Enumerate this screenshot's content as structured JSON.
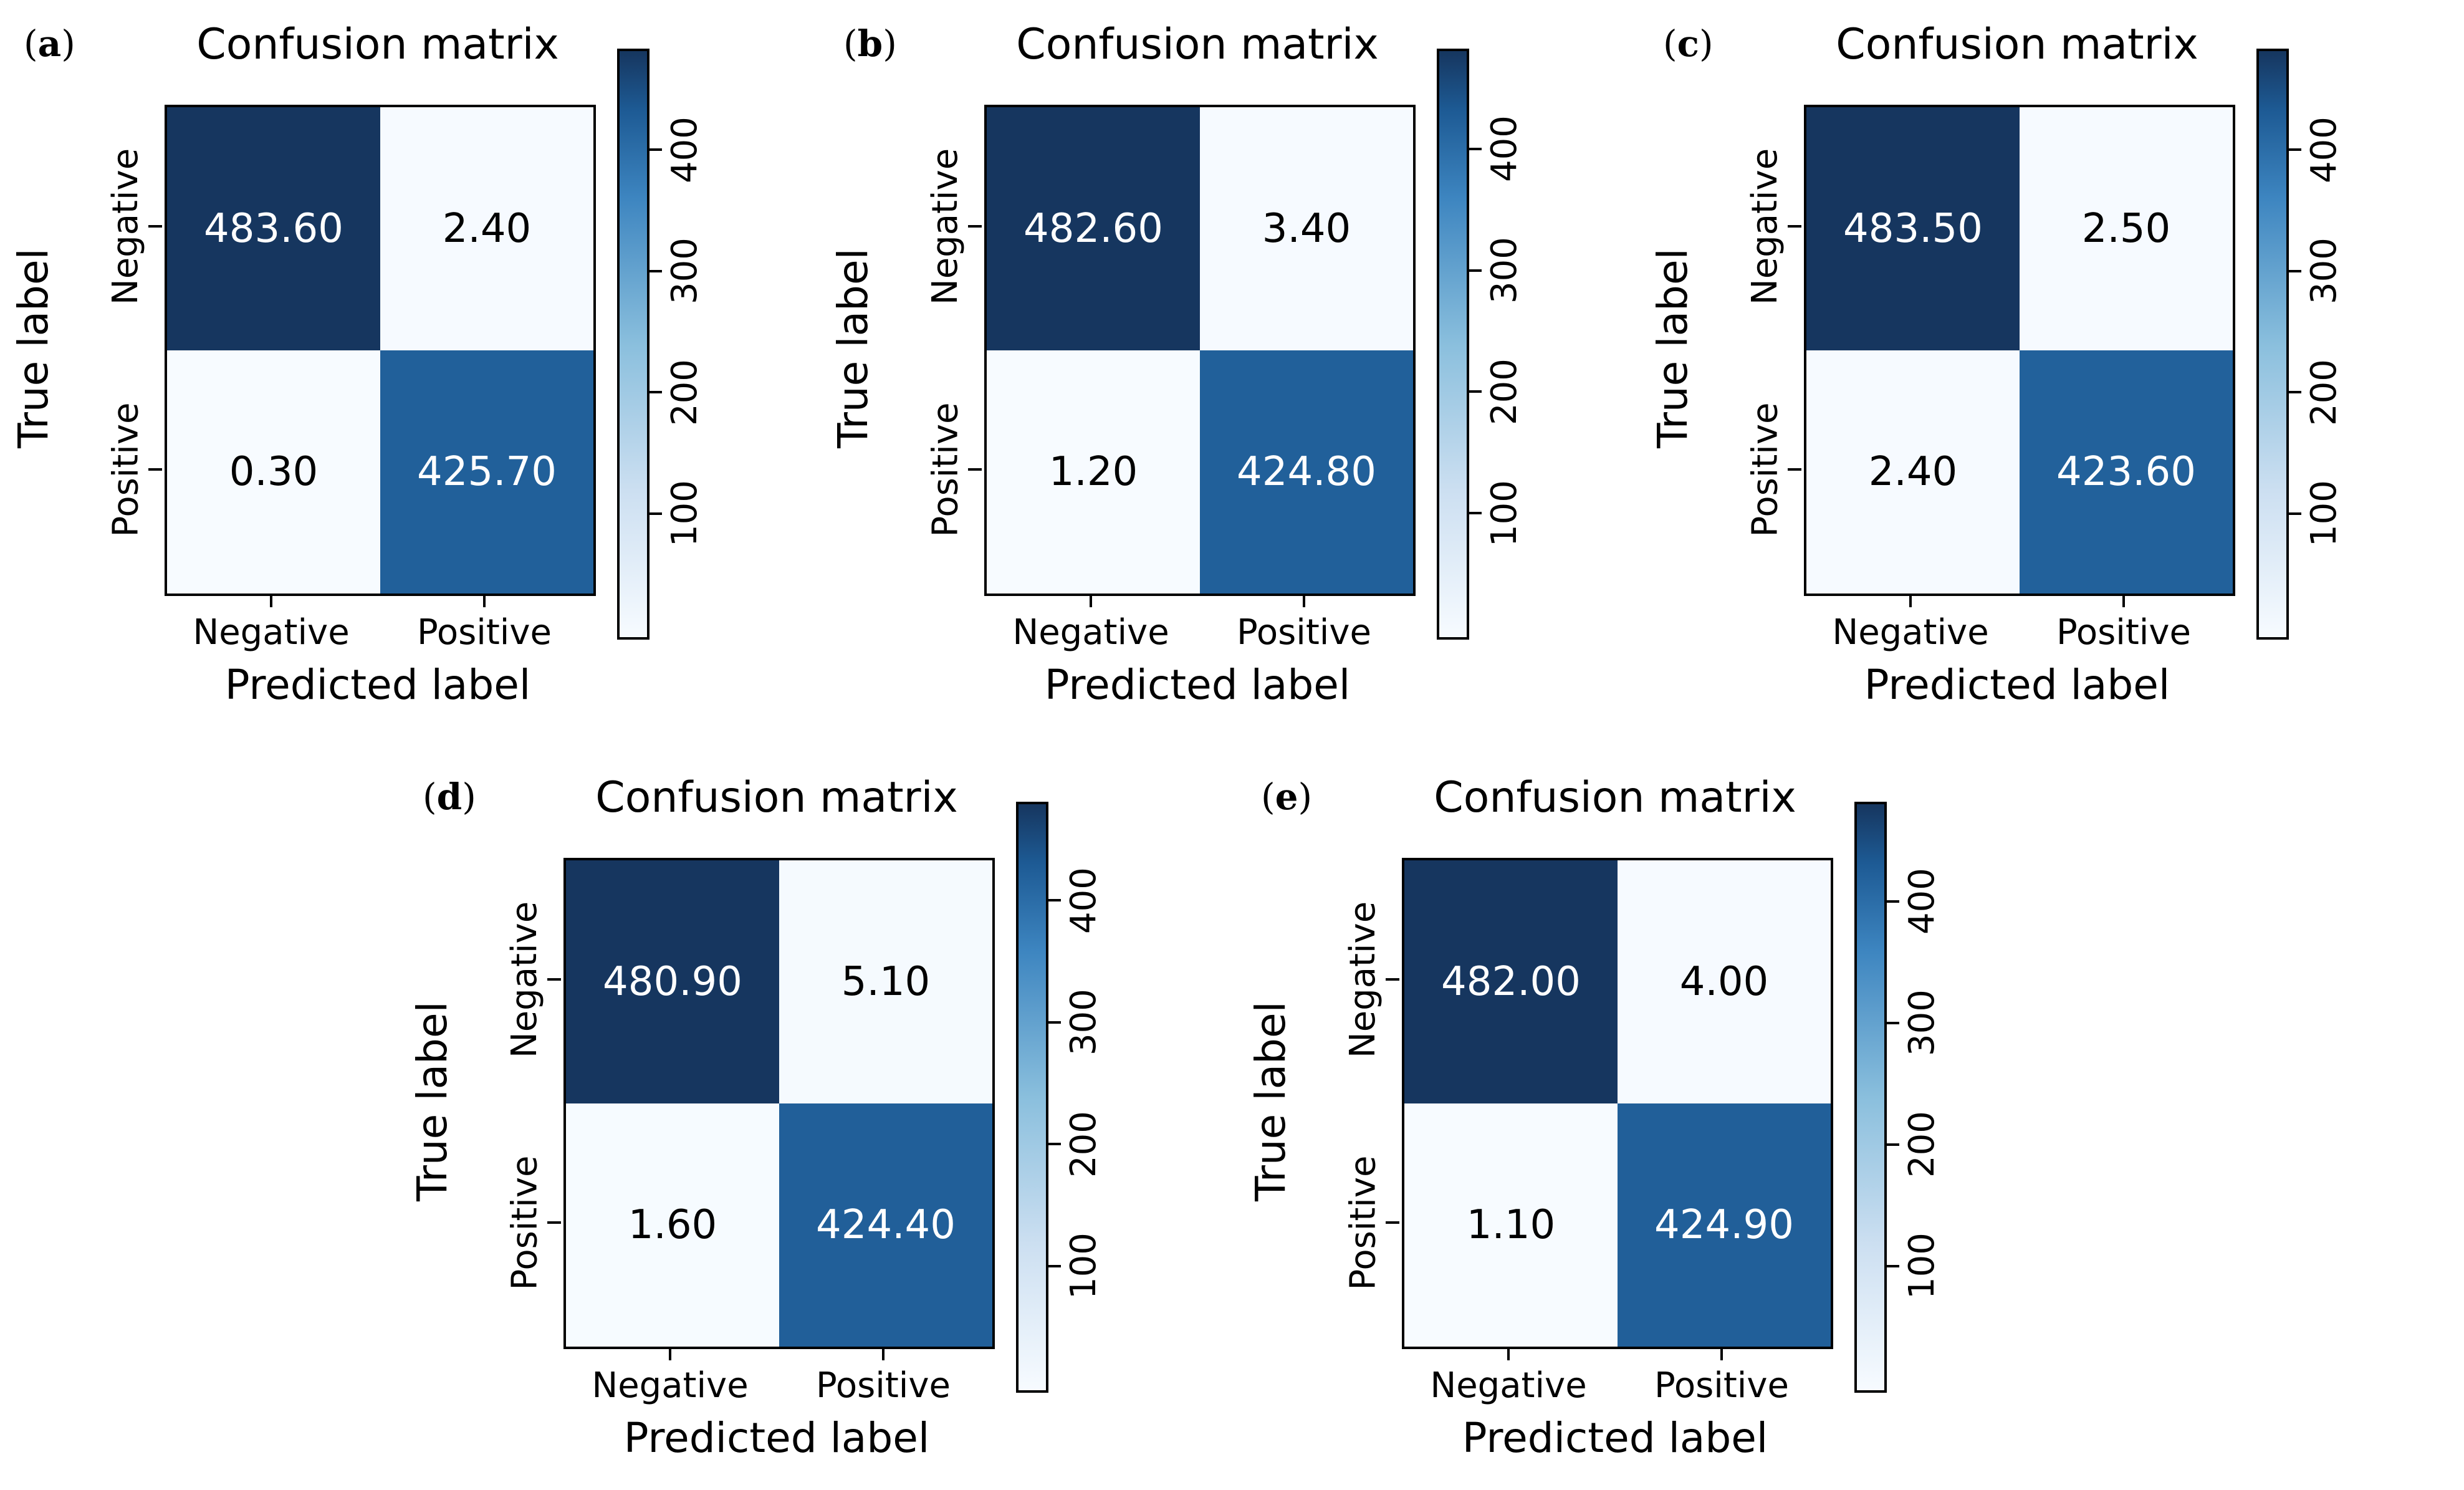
{
  "figure": {
    "title": "Confusion matrix",
    "xlabel": "Predicted label",
    "ylabel": "True label",
    "class_labels": [
      "Negative",
      "Positive"
    ],
    "colorbar_ticks": [
      "100",
      "200",
      "300",
      "400"
    ],
    "paren_open": "(",
    "paren_close": ")",
    "colors": {
      "cmap_max": "#16365f",
      "cmap_mid": "#21609a",
      "cmap_min": "#f7fbff",
      "cell_text_dark": "#000000",
      "cell_text_light": "#ffffff"
    }
  },
  "panels": [
    {
      "label": "a",
      "cells": [
        [
          "483.60",
          "2.40"
        ],
        [
          "0.30",
          "425.70"
        ]
      ]
    },
    {
      "label": "b",
      "cells": [
        [
          "482.60",
          "3.40"
        ],
        [
          "1.20",
          "424.80"
        ]
      ]
    },
    {
      "label": "c",
      "cells": [
        [
          "483.50",
          "2.50"
        ],
        [
          "2.40",
          "423.60"
        ]
      ]
    },
    {
      "label": "d",
      "cells": [
        [
          "480.90",
          "5.10"
        ],
        [
          "1.60",
          "424.40"
        ]
      ]
    },
    {
      "label": "e",
      "cells": [
        [
          "482.00",
          "4.00"
        ],
        [
          "1.10",
          "424.90"
        ]
      ]
    }
  ],
  "chart_data": [
    {
      "type": "heatmap",
      "panel": "a",
      "title": "Confusion matrix",
      "xlabel": "Predicted label",
      "ylabel": "True label",
      "x_categories": [
        "Negative",
        "Positive"
      ],
      "y_categories": [
        "Negative",
        "Positive"
      ],
      "values": [
        [
          483.6,
          2.4
        ],
        [
          0.3,
          425.7
        ]
      ],
      "colorbar_ticks": [
        100,
        200,
        300,
        400
      ],
      "colormap": "Blues",
      "colorbar_label_rotation": -90
    },
    {
      "type": "heatmap",
      "panel": "b",
      "title": "Confusion matrix",
      "xlabel": "Predicted label",
      "ylabel": "True label",
      "x_categories": [
        "Negative",
        "Positive"
      ],
      "y_categories": [
        "Negative",
        "Positive"
      ],
      "values": [
        [
          482.6,
          3.4
        ],
        [
          1.2,
          424.8
        ]
      ],
      "colorbar_ticks": [
        100,
        200,
        300,
        400
      ],
      "colormap": "Blues",
      "colorbar_label_rotation": -90
    },
    {
      "type": "heatmap",
      "panel": "c",
      "title": "Confusion matrix",
      "xlabel": "Predicted label",
      "ylabel": "True label",
      "x_categories": [
        "Negative",
        "Positive"
      ],
      "y_categories": [
        "Negative",
        "Positive"
      ],
      "values": [
        [
          483.5,
          2.5
        ],
        [
          2.4,
          423.6
        ]
      ],
      "colorbar_ticks": [
        100,
        200,
        300,
        400
      ],
      "colormap": "Blues",
      "colorbar_label_rotation": -90
    },
    {
      "type": "heatmap",
      "panel": "d",
      "title": "Confusion matrix",
      "xlabel": "Predicted label",
      "ylabel": "True label",
      "x_categories": [
        "Negative",
        "Positive"
      ],
      "y_categories": [
        "Negative",
        "Positive"
      ],
      "values": [
        [
          480.9,
          5.1
        ],
        [
          1.6,
          424.4
        ]
      ],
      "colorbar_ticks": [
        100,
        200,
        300,
        400
      ],
      "colormap": "Blues",
      "colorbar_label_rotation": -90
    },
    {
      "type": "heatmap",
      "panel": "e",
      "title": "Confusion matrix",
      "xlabel": "Predicted label",
      "ylabel": "True label",
      "x_categories": [
        "Negative",
        "Positive"
      ],
      "y_categories": [
        "Negative",
        "Positive"
      ],
      "values": [
        [
          482.0,
          4.0
        ],
        [
          1.1,
          424.9
        ]
      ],
      "colorbar_ticks": [
        100,
        200,
        300,
        400
      ],
      "colormap": "Blues",
      "colorbar_label_rotation": -90
    }
  ]
}
